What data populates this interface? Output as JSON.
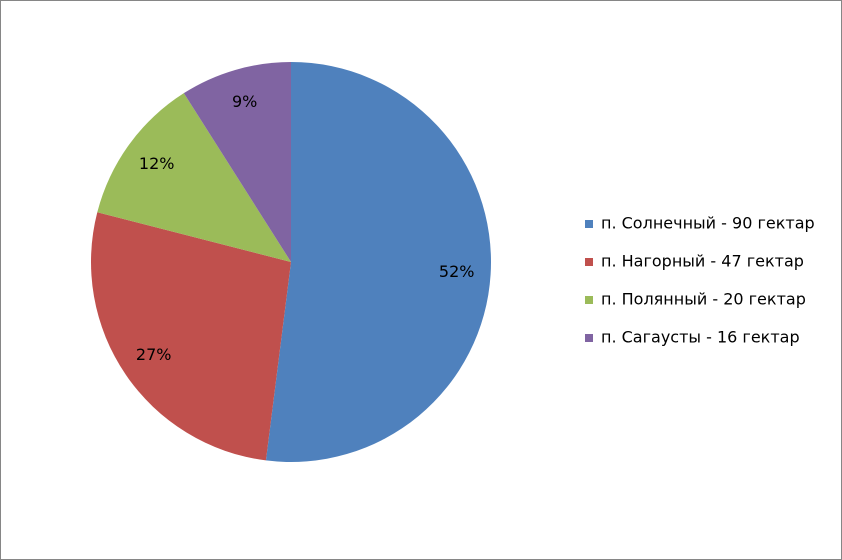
{
  "chart_data": {
    "type": "pie",
    "categories": [
      "п. Солнечный - 90 гектар",
      "п. Нагорный - 47 гектар",
      "п. Полянный - 20 гектар",
      "п. Сагаусты - 16 гектар"
    ],
    "values": [
      52,
      27,
      12,
      9
    ],
    "value_labels": [
      "52%",
      "27%",
      "12%",
      "9%"
    ],
    "colors": [
      "#4f81bd",
      "#c0504d",
      "#9bbb59",
      "#8064a2"
    ],
    "legend": "right"
  }
}
